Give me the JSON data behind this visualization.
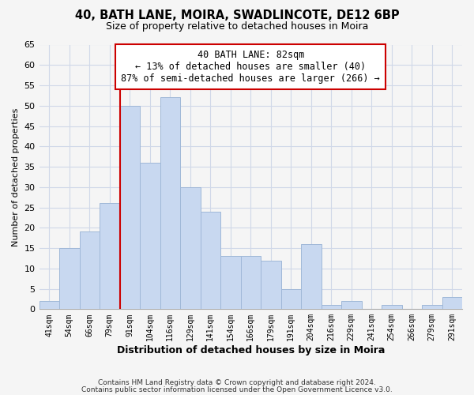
{
  "title": "40, BATH LANE, MOIRA, SWADLINCOTE, DE12 6BP",
  "subtitle": "Size of property relative to detached houses in Moira",
  "xlabel": "Distribution of detached houses by size in Moira",
  "ylabel": "Number of detached properties",
  "footer_line1": "Contains HM Land Registry data © Crown copyright and database right 2024.",
  "footer_line2": "Contains public sector information licensed under the Open Government Licence v3.0.",
  "bin_labels": [
    "41sqm",
    "54sqm",
    "66sqm",
    "79sqm",
    "91sqm",
    "104sqm",
    "116sqm",
    "129sqm",
    "141sqm",
    "154sqm",
    "166sqm",
    "179sqm",
    "191sqm",
    "204sqm",
    "216sqm",
    "229sqm",
    "241sqm",
    "254sqm",
    "266sqm",
    "279sqm",
    "291sqm"
  ],
  "bar_values": [
    2,
    15,
    19,
    26,
    50,
    36,
    52,
    30,
    24,
    13,
    13,
    12,
    5,
    16,
    1,
    2,
    0,
    1,
    0,
    1,
    3
  ],
  "bar_color": "#c8d8f0",
  "bar_edge_color": "#a0b8d8",
  "ylim": [
    0,
    65
  ],
  "yticks": [
    0,
    5,
    10,
    15,
    20,
    25,
    30,
    35,
    40,
    45,
    50,
    55,
    60,
    65
  ],
  "property_label": "40 BATH LANE: 82sqm",
  "annotation_line1": "← 13% of detached houses are smaller (40)",
  "annotation_line2": "87% of semi-detached houses are larger (266) →",
  "vline_bin_index": 4,
  "vline_color": "#cc0000",
  "annotation_box_color": "#ffffff",
  "annotation_box_edge": "#cc0000",
  "background_color": "#f5f5f5",
  "grid_color": "#d0d8e8"
}
